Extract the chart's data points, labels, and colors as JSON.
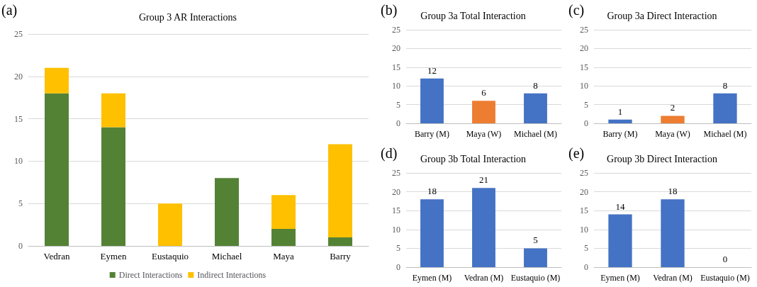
{
  "chart_data": [
    {
      "type": "bar",
      "title": "Group 3 AR Interactions",
      "annotations": [
        "(a)"
      ],
      "categories": [
        "Vedran",
        "Eymen",
        "Eustaquio",
        "Michael",
        "Maya",
        "Barry"
      ],
      "stacked": true,
      "series": [
        {
          "name": "Direct Interactions",
          "color": "#548235",
          "values": [
            18,
            14,
            0,
            8,
            2,
            1
          ]
        },
        {
          "name": "Indirect Interactions",
          "color": "#ffc000",
          "values": [
            3,
            4,
            5,
            0,
            4,
            11
          ]
        }
      ],
      "ylim": [
        0,
        25
      ],
      "yticks": [
        0,
        5,
        10,
        15,
        20,
        25
      ],
      "grid": "y",
      "legend": "bottom"
    },
    {
      "type": "bar",
      "title": "Group 3a Total Interaction",
      "annotations": [
        "(b)"
      ],
      "categories": [
        "Barry (M)",
        "Maya (W)",
        "Michael (M)"
      ],
      "values": [
        12,
        6,
        8
      ],
      "colors": [
        "#4472c4",
        "#ed7d31",
        "#4472c4"
      ],
      "ylim": [
        0,
        25
      ],
      "yticks": [
        0,
        5,
        10,
        15,
        20,
        25
      ],
      "grid": "y",
      "data_labels": true
    },
    {
      "type": "bar",
      "title": "Group 3a Direct Interaction",
      "annotations": [
        "(c)"
      ],
      "categories": [
        "Barry (M)",
        "Maya (W)",
        "Michael (M)"
      ],
      "values": [
        1,
        2,
        8
      ],
      "colors": [
        "#4472c4",
        "#ed7d31",
        "#4472c4"
      ],
      "ylim": [
        0,
        25
      ],
      "yticks": [
        0,
        5,
        10,
        15,
        20,
        25
      ],
      "grid": "y",
      "data_labels": true
    },
    {
      "type": "bar",
      "title": "Group 3b Total Interaction",
      "annotations": [
        "(d)"
      ],
      "categories": [
        "Eymen (M)",
        "Vedran (M)",
        "Eustaquio (M)"
      ],
      "values": [
        18,
        21,
        5
      ],
      "colors": [
        "#4472c4",
        "#4472c4",
        "#4472c4"
      ],
      "ylim": [
        0,
        25
      ],
      "yticks": [
        0,
        5,
        10,
        15,
        20,
        25
      ],
      "grid": "y",
      "data_labels": true
    },
    {
      "type": "bar",
      "title": "Group 3b Direct Interaction",
      "annotations": [
        "(e)"
      ],
      "categories": [
        "Eymen (M)",
        "Vedran (M)",
        "Eustaquio (M)"
      ],
      "values": [
        14,
        18,
        0
      ],
      "colors": [
        "#4472c4",
        "#4472c4",
        "#4472c4"
      ],
      "ylim": [
        0,
        25
      ],
      "yticks": [
        0,
        5,
        10,
        15,
        20,
        25
      ],
      "grid": "y",
      "data_labels": true
    }
  ]
}
